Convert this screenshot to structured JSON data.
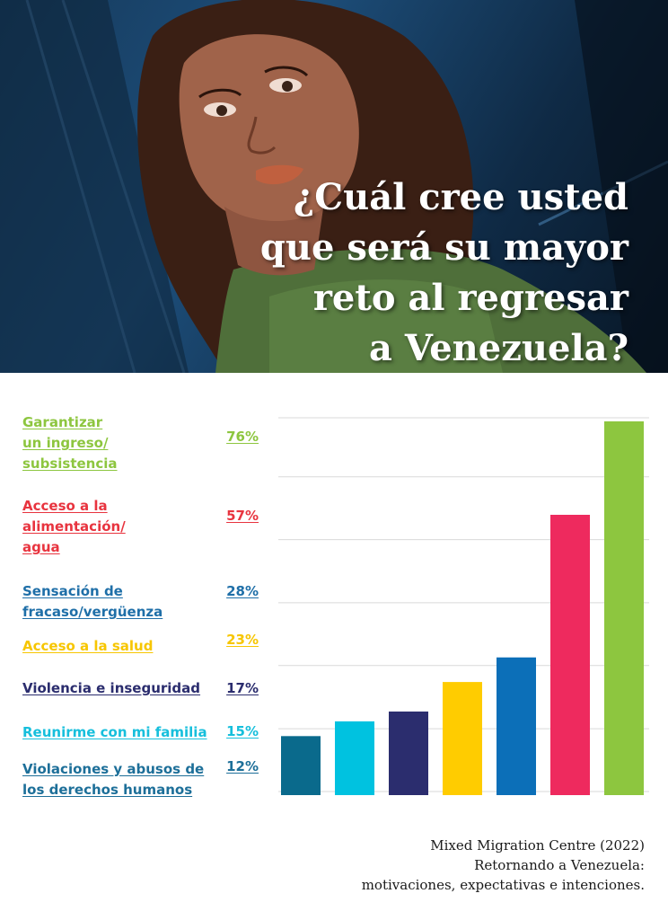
{
  "header": {
    "title_lines": [
      "¿Cuál cree usted",
      "que será su mayor",
      "reto al regresar",
      "a Venezuela?"
    ]
  },
  "illustration": {
    "icon": "woman-portrait-illustration"
  },
  "chart_data": {
    "type": "bar",
    "categories": [
      "Garantizar un ingreso/ subsistencia",
      "Acceso a la alimentación/ agua",
      "Sensación de fracaso/vergüenza",
      "Acceso a la salud",
      "Violencia e inseguridad",
      "Reunirme con mi familia",
      "Violaciones y abusos de los derechos humanos"
    ],
    "label_lines": [
      [
        "Garantizar",
        "un ingreso/",
        "subsistencia"
      ],
      [
        "Acceso a la",
        "alimentación/",
        "agua"
      ],
      [
        "Sensación de",
        "fracaso/vergüenza"
      ],
      [
        "Acceso a la salud"
      ],
      [
        "Violencia e inseguridad"
      ],
      [
        "Reunirme con mi familia"
      ],
      [
        "Violaciones y abusos de",
        "los derechos humanos"
      ]
    ],
    "values": [
      76,
      57,
      28,
      23,
      17,
      15,
      12
    ],
    "value_labels": [
      "76%",
      "57%",
      "28%",
      "23%",
      "17%",
      "15%",
      "12%"
    ],
    "colors": [
      "#8dc63f",
      "#ee2a5e",
      "#0c6fb8",
      "#ffcc00",
      "#2b2d6e",
      "#00c2e0",
      "#0a6a8c"
    ],
    "label_colors": [
      "#8dc63f",
      "#e8343f",
      "#1f6fa8",
      "#f7c600",
      "#2b2d6e",
      "#16bfdc",
      "#1d6f99"
    ],
    "bar_order": "ascending left to right",
    "grid": true,
    "ylim": [
      0,
      76
    ]
  },
  "source": {
    "lines": [
      "Mixed Migration Centre (2022)",
      "Retornando a Venezuela:",
      "motivaciones, expectativas e intenciones."
    ]
  }
}
